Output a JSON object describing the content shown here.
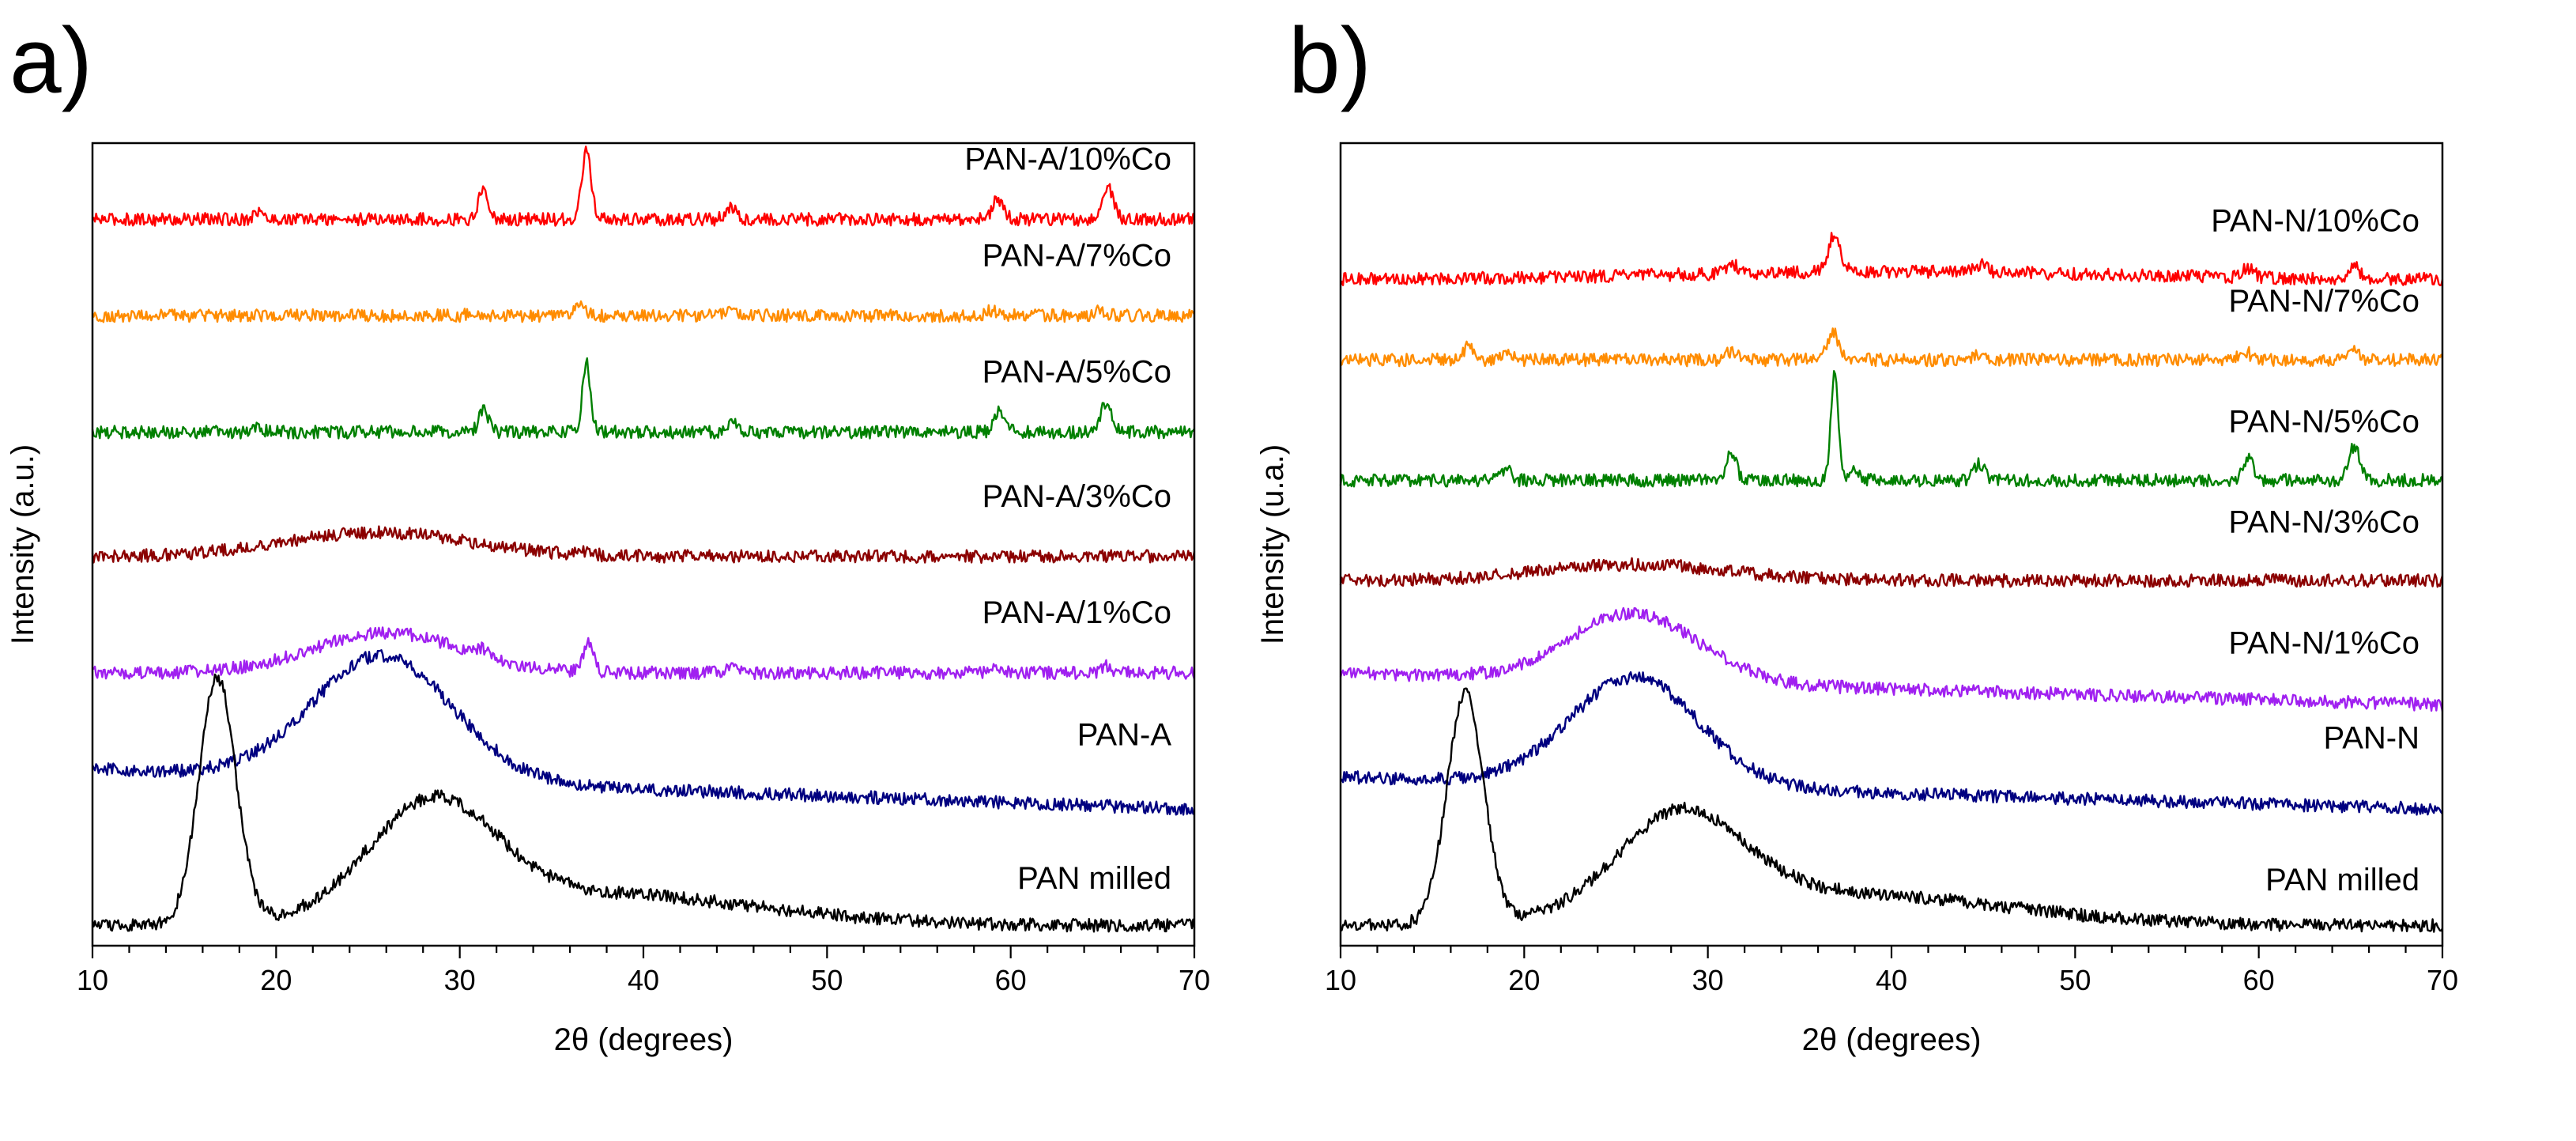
{
  "chart_data": [
    {
      "panel_label": "a)",
      "type": "line",
      "title": "",
      "xlabel": "2θ (degrees)",
      "ylabel": "Intensity (a.u.)",
      "xlim": [
        10,
        70
      ],
      "xticks": [
        10,
        20,
        30,
        40,
        50,
        60,
        70
      ],
      "yticks_visible": false,
      "stacked_offsets": true,
      "series": [
        {
          "name": "PAN-A/10%Co",
          "color": "#ff0000",
          "offset": 0.905,
          "base": [
            0,
            0
          ],
          "peaks": [
            [
              19.0,
              0.01,
              0.25
            ],
            [
              31.3,
              0.04,
              0.25
            ],
            [
              36.9,
              0.085,
              0.25
            ],
            [
              44.8,
              0.015,
              0.3
            ],
            [
              59.3,
              0.025,
              0.3
            ],
            [
              65.3,
              0.04,
              0.3
            ]
          ]
        },
        {
          "name": "PAN-A/7%Co",
          "color": "#ff8c00",
          "offset": 0.785,
          "base": [
            0,
            0
          ],
          "peaks": [
            [
              30.8,
              0.004,
              0.3
            ],
            [
              36.6,
              0.012,
              0.3
            ],
            [
              44.8,
              0.004,
              0.3
            ],
            [
              59.0,
              0.007,
              0.3
            ],
            [
              64.9,
              0.007,
              0.3
            ]
          ]
        },
        {
          "name": "PAN-A/5%Co",
          "color": "#008000",
          "offset": 0.64,
          "base": [
            0,
            0
          ],
          "peaks": [
            [
              19.0,
              0.008,
              0.25
            ],
            [
              31.3,
              0.03,
              0.25
            ],
            [
              36.9,
              0.085,
              0.22
            ],
            [
              44.9,
              0.012,
              0.3
            ],
            [
              59.4,
              0.025,
              0.3
            ],
            [
              65.2,
              0.038,
              0.3
            ]
          ]
        },
        {
          "name": "PAN-A/3%Co",
          "color": "#8b0000",
          "offset": 0.485,
          "base": [
            0,
            0
          ],
          "peaks": [
            [
              25.5,
              0.03,
              5.0
            ],
            [
              36.9,
              0.005,
              0.3
            ]
          ]
        },
        {
          "name": "PAN-A/1%Co",
          "color": "#a020f0",
          "offset": 0.34,
          "base": [
            0,
            0
          ],
          "peaks": [
            [
              26.0,
              0.05,
              4.0
            ],
            [
              31.3,
              0.01,
              0.3
            ],
            [
              37.0,
              0.035,
              0.28
            ],
            [
              44.9,
              0.006,
              0.3
            ],
            [
              59.3,
              0.006,
              0.3
            ],
            [
              65.2,
              0.008,
              0.3
            ]
          ]
        },
        {
          "name": "PAN-A",
          "color": "#000080",
          "offset": 0.18,
          "base": [
            0.04,
            -0.05
          ],
          "peaks": [
            [
              25.8,
              0.155,
              3.8
            ]
          ]
        },
        {
          "name": "PAN milled",
          "color": "#000000",
          "offset": 0.005,
          "base": [
            0.02,
            0
          ],
          "peaks": [
            [
              16.8,
              0.305,
              1.0
            ],
            [
              28.5,
              0.135,
              3.4
            ],
            [
              37.0,
              0.04,
              9.0
            ]
          ]
        }
      ]
    },
    {
      "panel_label": "b)",
      "type": "line",
      "title": "",
      "xlabel": "2θ (degrees)",
      "ylabel": "Intensity (u.a.)",
      "xlim": [
        10,
        70
      ],
      "xticks": [
        10,
        20,
        30,
        40,
        50,
        60,
        70
      ],
      "yticks_visible": false,
      "stacked_offsets": true,
      "series": [
        {
          "name": "PAN-N/10%Co",
          "color": "#ff0000",
          "offset": 0.83,
          "base": [
            0,
            0
          ],
          "peaks": [
            [
              31.3,
              0.012,
              0.3
            ],
            [
              36.9,
              0.048,
              0.32
            ],
            [
              44.9,
              0.01,
              0.3
            ],
            [
              59.4,
              0.012,
              0.3
            ],
            [
              65.2,
              0.015,
              0.3
            ],
            [
              40.0,
              0.01,
              12.0
            ]
          ]
        },
        {
          "name": "PAN-N/7%Co",
          "color": "#ff8c00",
          "offset": 0.73,
          "base": [
            0,
            0
          ],
          "peaks": [
            [
              17.0,
              0.02,
              0.25
            ],
            [
              19.0,
              0.006,
              0.3
            ],
            [
              31.3,
              0.01,
              0.3
            ],
            [
              36.8,
              0.035,
              0.3
            ],
            [
              44.8,
              0.008,
              0.3
            ],
            [
              59.2,
              0.012,
              0.3
            ],
            [
              65.1,
              0.015,
              0.3
            ]
          ]
        },
        {
          "name": "PAN-N/5%Co",
          "color": "#008000",
          "offset": 0.58,
          "base": [
            0,
            0
          ],
          "peaks": [
            [
              19.0,
              0.014,
              0.25
            ],
            [
              31.3,
              0.036,
              0.25
            ],
            [
              36.9,
              0.13,
              0.2
            ],
            [
              38.0,
              0.01,
              0.3
            ],
            [
              44.8,
              0.02,
              0.3
            ],
            [
              59.4,
              0.026,
              0.3
            ],
            [
              65.2,
              0.042,
              0.3
            ]
          ]
        },
        {
          "name": "PAN-N/3%Co",
          "color": "#8b0000",
          "offset": 0.455,
          "base": [
            0,
            0
          ],
          "peaks": [
            [
              26.0,
              0.02,
              5.0
            ]
          ]
        },
        {
          "name": "PAN-N/1%Co",
          "color": "#a020f0",
          "offset": 0.295,
          "base": [
            0.045,
            -0.04
          ],
          "peaks": [
            [
              26.0,
              0.085,
              3.5
            ]
          ]
        },
        {
          "name": "PAN-N",
          "color": "#000080",
          "offset": 0.18,
          "base": [
            0.03,
            -0.04
          ],
          "peaks": [
            [
              26.0,
              0.135,
              3.5
            ]
          ]
        },
        {
          "name": "PAN milled",
          "color": "#000000",
          "offset": 0.005,
          "base": [
            0.02,
            0
          ],
          "peaks": [
            [
              16.8,
              0.285,
              1.0
            ],
            [
              28.5,
              0.12,
              3.4
            ],
            [
              37.0,
              0.04,
              9.0
            ]
          ]
        }
      ]
    }
  ]
}
